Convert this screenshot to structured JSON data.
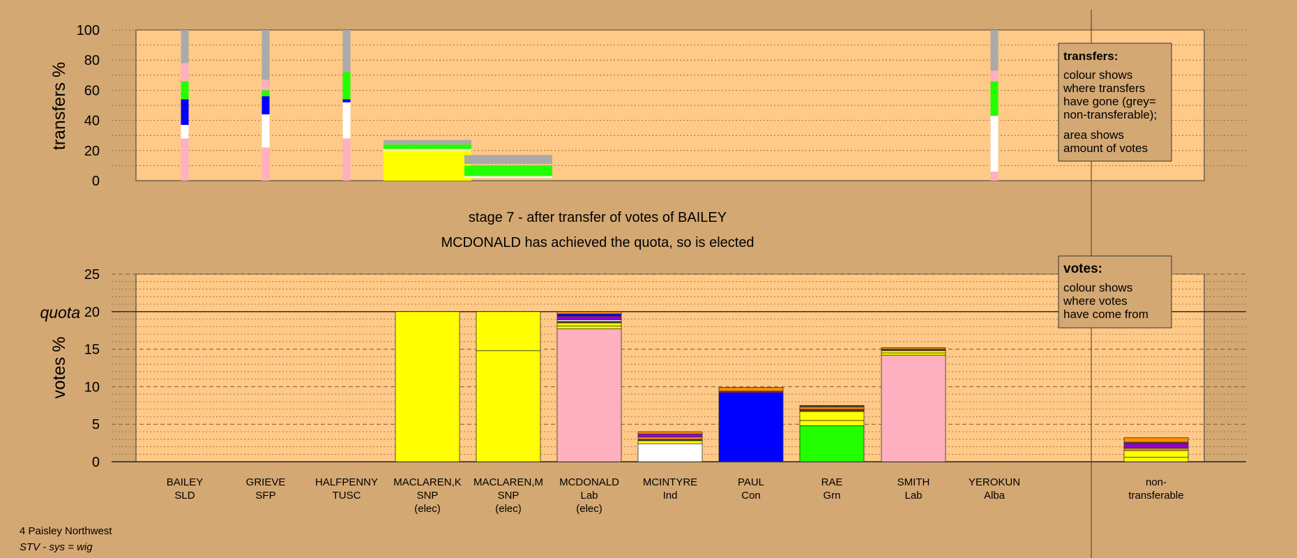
{
  "header": {
    "stage_line": "stage 7 - after transfer of votes of BAILEY",
    "elected_line": "MCDONALD has achieved the quota, so is elected"
  },
  "footer": {
    "constituency": "4 Paisley Northwest",
    "system": "STV - sys = wig"
  },
  "legend_boxes": {
    "transfers": {
      "title": "transfers:",
      "lines": [
        "colour shows",
        "where transfers",
        "have gone (grey=",
        "non-transferable);"
      ],
      "lines2": [
        "area shows",
        "amount of votes"
      ]
    },
    "votes": {
      "title": "votes:",
      "lines": [
        "colour shows",
        "where votes",
        "have come from"
      ]
    }
  },
  "colors": {
    "background": "#d4a873",
    "plot_bg": "#ffc987",
    "SLD": "#ffb0c0",
    "SFP": "#ff8c00",
    "TUSC": "#ff8c00",
    "SNP": "#ffff00",
    "Lab": "#ffb0c0",
    "Ind": "#ffffff",
    "Con": "#0000ff",
    "Grn": "#22ff00",
    "Alba": "#9400d3",
    "nontransferable": "#aaaaaa",
    "brown": "#5a3a1a"
  },
  "chart_data": [
    {
      "name": "transfers",
      "type": "bar",
      "ylabel": "transfers %",
      "ylim": [
        0,
        100
      ],
      "yticks": [
        0,
        20,
        40,
        60,
        80,
        100
      ],
      "grid": "dotted",
      "columns": [
        {
          "candidate": "BAILEY",
          "stacked_thin": true,
          "segments": [
            {
              "party": "SLD",
              "from": 0,
              "to": 28
            },
            {
              "party": "Ind",
              "from": 28,
              "to": 37
            },
            {
              "party": "Con",
              "from": 37,
              "to": 54
            },
            {
              "party": "Grn",
              "from": 54,
              "to": 66
            },
            {
              "party": "SLD",
              "from": 66,
              "to": 78
            },
            {
              "party": "nontransferable",
              "from": 78,
              "to": 100
            }
          ]
        },
        {
          "candidate": "GRIEVE",
          "stacked_thin": true,
          "segments": [
            {
              "party": "SLD",
              "from": 0,
              "to": 22
            },
            {
              "party": "Ind",
              "from": 22,
              "to": 44
            },
            {
              "party": "Con",
              "from": 44,
              "to": 56
            },
            {
              "party": "Grn",
              "from": 56,
              "to": 60
            },
            {
              "party": "SLD",
              "from": 60,
              "to": 67
            },
            {
              "party": "nontransferable",
              "from": 67,
              "to": 100
            }
          ]
        },
        {
          "candidate": "HALFPENNY",
          "stacked_thin": true,
          "segments": [
            {
              "party": "SLD",
              "from": 0,
              "to": 28
            },
            {
              "party": "Ind",
              "from": 28,
              "to": 52
            },
            {
              "party": "Con",
              "from": 52,
              "to": 54
            },
            {
              "party": "Grn",
              "from": 54,
              "to": 72
            },
            {
              "party": "nontransferable",
              "from": 72,
              "to": 100
            }
          ]
        },
        {
          "candidate": "MACLAREN,K",
          "stacked_thin": false,
          "segments": [
            {
              "party": "SNP",
              "from": 0,
              "to": 20
            },
            {
              "party": "Ind",
              "from": 20,
              "to": 21
            },
            {
              "party": "Grn",
              "from": 21,
              "to": 24
            },
            {
              "party": "nontransferable",
              "from": 24,
              "to": 27
            }
          ]
        },
        {
          "candidate": "MACLAREN,M",
          "stacked_thin": false,
          "segments": [
            {
              "party": "Ind",
              "from": 2,
              "to": 3
            },
            {
              "party": "Grn",
              "from": 3,
              "to": 10
            },
            {
              "party": "nontransferable",
              "from": 11,
              "to": 17
            }
          ]
        },
        {
          "candidate": "YEROKUN",
          "stacked_thin": true,
          "segments": [
            {
              "party": "SLD",
              "from": 0,
              "to": 6
            },
            {
              "party": "Ind",
              "from": 6,
              "to": 43
            },
            {
              "party": "Grn",
              "from": 43,
              "to": 66
            },
            {
              "party": "SLD",
              "from": 66,
              "to": 73
            },
            {
              "party": "nontransferable",
              "from": 73,
              "to": 100
            }
          ]
        }
      ]
    },
    {
      "name": "votes",
      "type": "bar",
      "ylabel": "votes %",
      "ylim": [
        0,
        25
      ],
      "yticks": [
        0,
        5,
        10,
        15,
        20,
        25
      ],
      "quota": 20,
      "quota_label": "quota",
      "grid": "dashed",
      "candidates": [
        {
          "name": "BAILEY",
          "party": "SLD",
          "status": "",
          "segments": []
        },
        {
          "name": "GRIEVE",
          "party": "SFP",
          "status": "",
          "segments": []
        },
        {
          "name": "HALFPENNY",
          "party": "TUSC",
          "status": "",
          "segments": []
        },
        {
          "name": "MACLAREN,K",
          "party": "SNP",
          "status": "(elec)",
          "segments": [
            {
              "color": "SNP",
              "value": 20
            }
          ]
        },
        {
          "name": "MACLAREN,M",
          "party": "SNP",
          "status": "(elec)",
          "segments": [
            {
              "color": "SNP",
              "value": 14.8
            },
            {
              "color": "SNP",
              "value": 5.2
            }
          ]
        },
        {
          "name": "MCDONALD",
          "party": "Lab",
          "status": "(elec)",
          "segments": [
            {
              "color": "Lab",
              "value": 17.7
            },
            {
              "color": "SNP",
              "value": 0.4
            },
            {
              "color": "SNP",
              "value": 0.4
            },
            {
              "color": "brown",
              "value": 0.2
            },
            {
              "color": "Ind",
              "value": 0.2
            },
            {
              "color": "Alba",
              "value": 0.5
            },
            {
              "color": "Con",
              "value": 0.3
            },
            {
              "color": "SFP",
              "value": 0.3
            }
          ]
        },
        {
          "name": "MCINTYRE",
          "party": "Ind",
          "status": "",
          "segments": [
            {
              "color": "Ind",
              "value": 2.4
            },
            {
              "color": "SNP",
              "value": 0.4
            },
            {
              "color": "brown",
              "value": 0.2
            },
            {
              "color": "SFP",
              "value": 0.3
            },
            {
              "color": "Alba",
              "value": 0.4
            },
            {
              "color": "SFP",
              "value": 0.3
            }
          ]
        },
        {
          "name": "PAUL",
          "party": "Con",
          "status": "",
          "segments": [
            {
              "color": "Con",
              "value": 9.2
            },
            {
              "color": "Alba",
              "value": 0.2
            },
            {
              "color": "SFP",
              "value": 0.5
            }
          ]
        },
        {
          "name": "RAE",
          "party": "Grn",
          "status": "",
          "segments": [
            {
              "color": "Grn",
              "value": 4.8
            },
            {
              "color": "SNP",
              "value": 0.7
            },
            {
              "color": "SNP",
              "value": 1.2
            },
            {
              "color": "brown",
              "value": 0.3
            },
            {
              "color": "SFP",
              "value": 0.3
            },
            {
              "color": "brown",
              "value": 0.2
            }
          ]
        },
        {
          "name": "SMITH",
          "party": "Lab",
          "status": "",
          "segments": [
            {
              "color": "Lab",
              "value": 14.2
            },
            {
              "color": "SNP",
              "value": 0.3
            },
            {
              "color": "SNP",
              "value": 0.3
            },
            {
              "color": "brown",
              "value": 0.2
            },
            {
              "color": "SFP",
              "value": 0.2
            }
          ]
        },
        {
          "name": "YEROKUN",
          "party": "Alba",
          "status": "",
          "segments": []
        }
      ],
      "nontransferable": {
        "label_lines": [
          "non-",
          "transferable"
        ],
        "segments": [
          {
            "color": "SNP",
            "value": 0.6
          },
          {
            "color": "SNP",
            "value": 0.9
          },
          {
            "color": "SFP",
            "value": 0.3
          },
          {
            "color": "Alba",
            "value": 0.6
          },
          {
            "color": "brown",
            "value": 0.2
          },
          {
            "color": "SFP",
            "value": 0.6
          }
        ]
      }
    }
  ]
}
